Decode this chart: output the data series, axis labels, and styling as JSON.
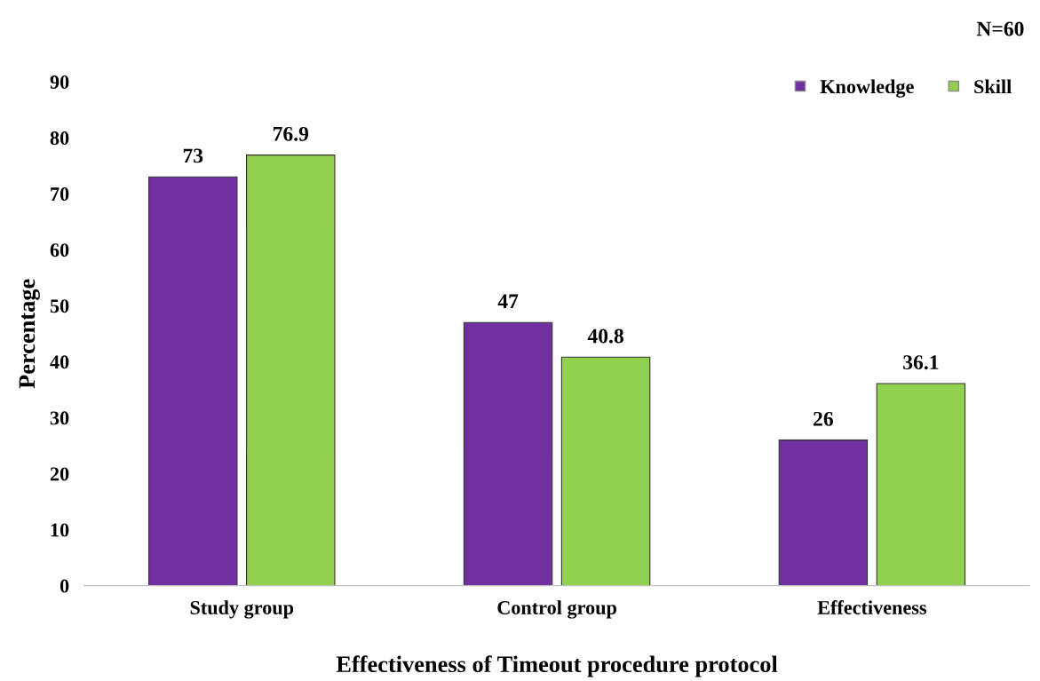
{
  "chart_data": {
    "type": "bar",
    "xlabel": "Effectiveness of Timeout procedure protocol",
    "ylabel": "Percentage",
    "categories": [
      "Study group",
      "Control group",
      "Effectiveness"
    ],
    "series": [
      {
        "name": "Knowledge",
        "color": "#7030a0",
        "values": [
          73,
          47,
          26
        ]
      },
      {
        "name": "Skill",
        "color": "#92d050",
        "values": [
          76.9,
          40.8,
          36.1
        ]
      }
    ],
    "ylim": [
      0,
      90
    ],
    "yticks": [
      0,
      10,
      20,
      30,
      40,
      50,
      60,
      70,
      80,
      90
    ],
    "data_labels": true,
    "grid": false,
    "legend": "top right",
    "annotations": [
      "N=60"
    ]
  }
}
